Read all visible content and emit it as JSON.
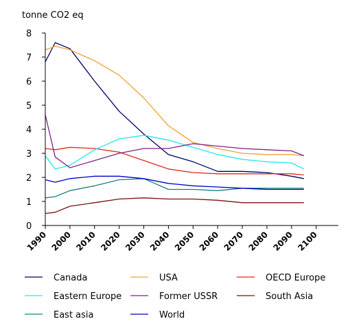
{
  "chart_data": {
    "type": "line",
    "ylabel": "tonne CO2 eq",
    "xlabel": "",
    "title": "",
    "x": [
      1990,
      2000,
      2010,
      2020,
      2030,
      2040,
      2050,
      2060,
      2070,
      2080,
      2090,
      2100
    ],
    "x_tick_labels": [
      "1990",
      "2000",
      "2010",
      "2020",
      "2030",
      "2040",
      "2050",
      "2060",
      "2070",
      "2080",
      "2090",
      "2100"
    ],
    "y_tick_labels": [
      "0",
      "1",
      "2",
      "3",
      "4",
      "5",
      "6",
      "7",
      "8"
    ],
    "ylim": [
      0,
      8
    ],
    "grid": false,
    "legend_position": "bottom",
    "series": [
      {
        "name": "Canada",
        "color": "#000066",
        "points": [
          [
            1990,
            6.8
          ],
          [
            1994,
            7.6
          ],
          [
            2000,
            7.35
          ],
          [
            2010,
            6.0
          ],
          [
            2020,
            4.75
          ],
          [
            2030,
            3.8
          ],
          [
            2040,
            2.95
          ],
          [
            2050,
            2.65
          ],
          [
            2060,
            2.25
          ],
          [
            2070,
            2.25
          ],
          [
            2080,
            2.2
          ],
          [
            2090,
            2.05
          ],
          [
            2095,
            1.95
          ]
        ]
      },
      {
        "name": "USA",
        "color": "#F0A030",
        "points": [
          [
            1990,
            7.3
          ],
          [
            1994,
            7.45
          ],
          [
            2000,
            7.3
          ],
          [
            2010,
            6.85
          ],
          [
            2020,
            6.25
          ],
          [
            2030,
            5.3
          ],
          [
            2040,
            4.15
          ],
          [
            2050,
            3.45
          ],
          [
            2060,
            3.2
          ],
          [
            2070,
            3.0
          ],
          [
            2080,
            2.95
          ],
          [
            2090,
            2.95
          ],
          [
            2095,
            2.9
          ]
        ]
      },
      {
        "name": "OECD Europe",
        "color": "#E0281E",
        "points": [
          [
            1990,
            3.2
          ],
          [
            1994,
            3.15
          ],
          [
            2000,
            3.25
          ],
          [
            2010,
            3.2
          ],
          [
            2020,
            3.05
          ],
          [
            2030,
            2.7
          ],
          [
            2040,
            2.35
          ],
          [
            2050,
            2.2
          ],
          [
            2060,
            2.15
          ],
          [
            2070,
            2.15
          ],
          [
            2080,
            2.15
          ],
          [
            2090,
            2.15
          ],
          [
            2095,
            2.1
          ]
        ]
      },
      {
        "name": "Eastern Europe",
        "color": "#22E6F0",
        "points": [
          [
            1990,
            2.9
          ],
          [
            1994,
            2.35
          ],
          [
            2000,
            2.5
          ],
          [
            2010,
            3.15
          ],
          [
            2020,
            3.6
          ],
          [
            2030,
            3.75
          ],
          [
            2040,
            3.55
          ],
          [
            2050,
            3.25
          ],
          [
            2060,
            2.95
          ],
          [
            2070,
            2.75
          ],
          [
            2080,
            2.65
          ],
          [
            2090,
            2.6
          ],
          [
            2095,
            2.35
          ]
        ]
      },
      {
        "name": "Former USSR",
        "color": "#80208A",
        "points": [
          [
            1990,
            4.6
          ],
          [
            1994,
            2.85
          ],
          [
            2000,
            2.4
          ],
          [
            2010,
            2.7
          ],
          [
            2020,
            3.0
          ],
          [
            2030,
            3.2
          ],
          [
            2040,
            3.2
          ],
          [
            2050,
            3.4
          ],
          [
            2060,
            3.3
          ],
          [
            2070,
            3.2
          ],
          [
            2080,
            3.15
          ],
          [
            2090,
            3.1
          ],
          [
            2095,
            2.9
          ]
        ]
      },
      {
        "name": "South Asia",
        "color": "#7A0E0E",
        "points": [
          [
            1990,
            0.5
          ],
          [
            1994,
            0.55
          ],
          [
            2000,
            0.8
          ],
          [
            2010,
            0.95
          ],
          [
            2020,
            1.1
          ],
          [
            2030,
            1.15
          ],
          [
            2040,
            1.1
          ],
          [
            2050,
            1.1
          ],
          [
            2060,
            1.05
          ],
          [
            2070,
            0.95
          ],
          [
            2080,
            0.95
          ],
          [
            2090,
            0.95
          ],
          [
            2095,
            0.95
          ]
        ]
      },
      {
        "name": "East asia",
        "color": "#1A7F7F",
        "points": [
          [
            1990,
            1.15
          ],
          [
            1994,
            1.2
          ],
          [
            2000,
            1.45
          ],
          [
            2010,
            1.65
          ],
          [
            2020,
            1.9
          ],
          [
            2030,
            1.95
          ],
          [
            2040,
            1.5
          ],
          [
            2050,
            1.5
          ],
          [
            2060,
            1.45
          ],
          [
            2070,
            1.55
          ],
          [
            2080,
            1.55
          ],
          [
            2090,
            1.55
          ],
          [
            2095,
            1.55
          ]
        ]
      },
      {
        "name": "World",
        "color": "#0000CC",
        "points": [
          [
            1990,
            1.9
          ],
          [
            1994,
            1.8
          ],
          [
            2000,
            1.95
          ],
          [
            2010,
            2.05
          ],
          [
            2020,
            2.05
          ],
          [
            2030,
            1.95
          ],
          [
            2040,
            1.75
          ],
          [
            2050,
            1.65
          ],
          [
            2060,
            1.6
          ],
          [
            2070,
            1.55
          ],
          [
            2080,
            1.5
          ],
          [
            2090,
            1.5
          ],
          [
            2095,
            1.5
          ]
        ]
      }
    ]
  }
}
